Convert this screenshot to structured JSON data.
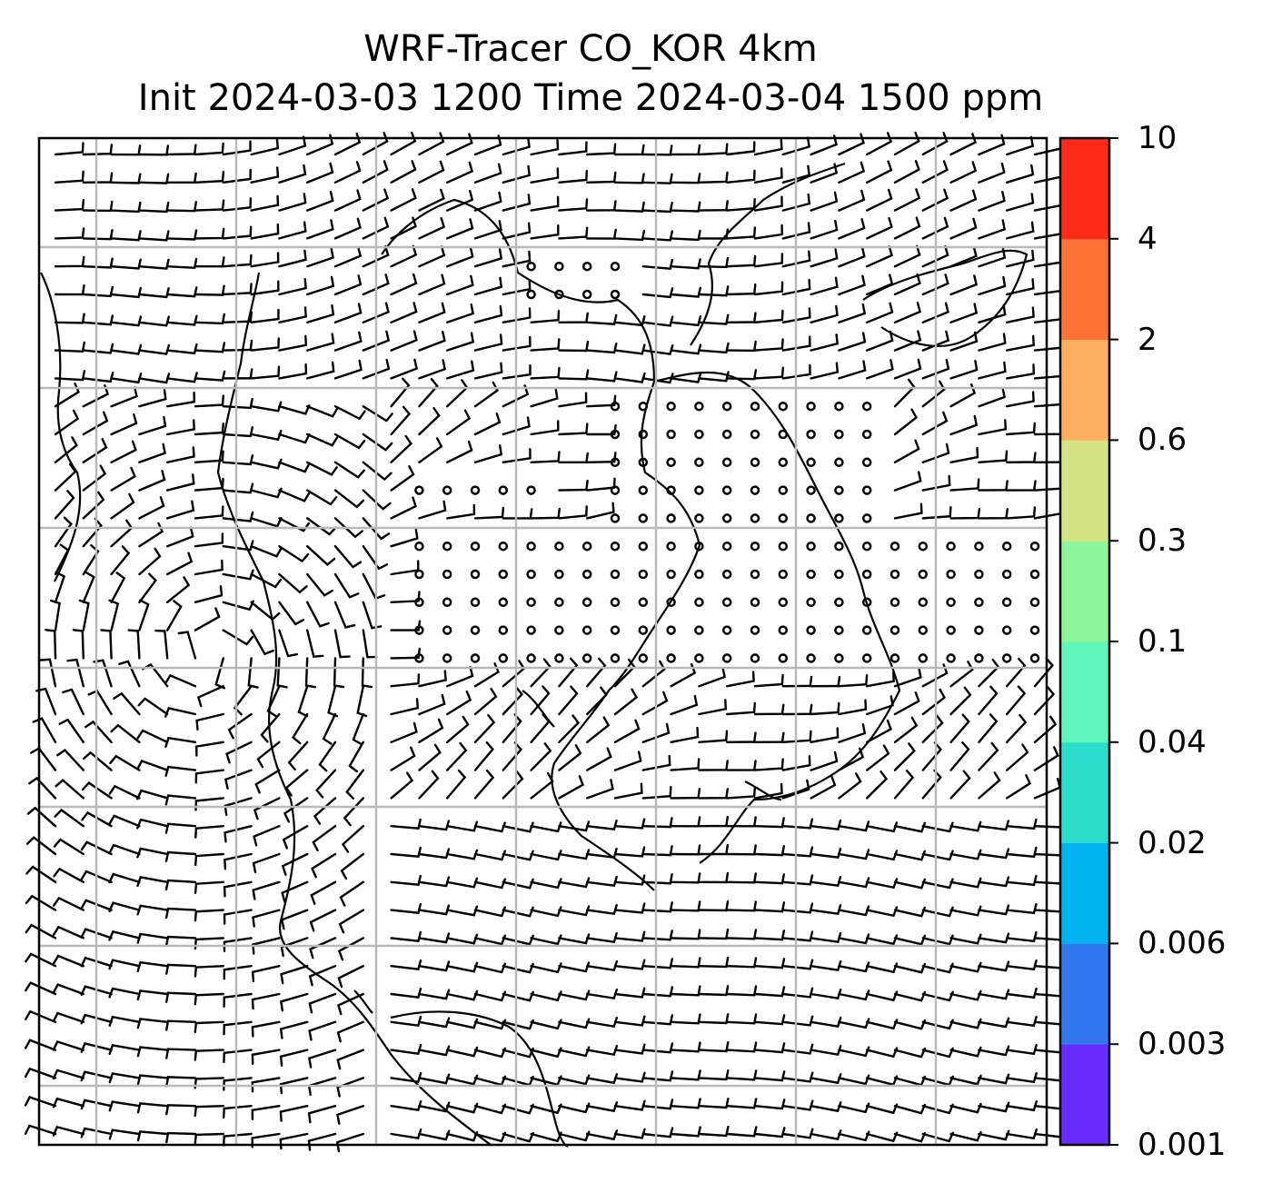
{
  "title": {
    "line1": "WRF-Tracer CO_KOR 4km",
    "line2": "Init 2024-03-03 1200 Time 2024-03-04 1500 ppm"
  },
  "colorbar": {
    "levels": [
      "0.001",
      "0.003",
      "0.006",
      "0.02",
      "0.04",
      "0.1",
      "0.3",
      "0.6",
      "2",
      "4",
      "10"
    ],
    "colors": [
      "#6a2bff",
      "#3377ee",
      "#00b2ee",
      "#2cddcc",
      "#5ff5bb",
      "#8ef59a",
      "#d4e383",
      "#fdae61",
      "#fd7337",
      "#ff2a18"
    ]
  },
  "map": {
    "layers": [
      "wind-barbs",
      "coastlines",
      "gridlines",
      "calm-circles"
    ],
    "line_color": "#000000",
    "grid_color": "#b8b8b8"
  }
}
